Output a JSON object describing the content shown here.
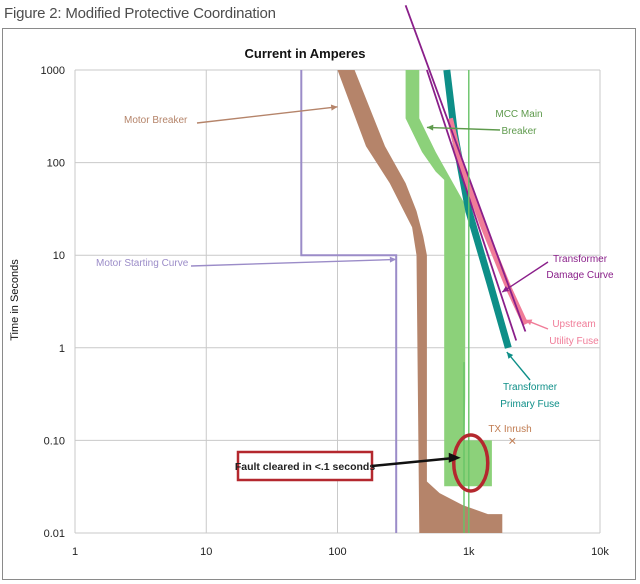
{
  "figure_title": "Figure 2: Modified Protective Coordination",
  "chart_data": {
    "type": "line",
    "title": "Current in Amperes",
    "xlabel": "",
    "ylabel": "Time in Seconds",
    "xscale": "log",
    "yscale": "log",
    "xlim": [
      1,
      10000
    ],
    "ylim": [
      0.01,
      1000
    ],
    "grid": true,
    "x_tick_labels": [
      "1",
      "10",
      "100",
      "1k",
      "10k"
    ],
    "x_tick_values": [
      1,
      10,
      100,
      1000,
      10000
    ],
    "y_tick_labels": [
      "1000",
      "100",
      "10",
      "1",
      "0.10",
      "0.01"
    ],
    "y_tick_values": [
      1000,
      100,
      10,
      1,
      0.1,
      0.01
    ],
    "series": [
      {
        "name": "Motor Breaker",
        "kind": "band",
        "color": "#b5846a",
        "upper": [
          [
            135,
            1000
          ],
          [
            230,
            150
          ],
          [
            330,
            60
          ],
          [
            400,
            30
          ],
          [
            450,
            16
          ],
          [
            480,
            10
          ],
          [
            480,
            0.036
          ],
          [
            600,
            0.027
          ],
          [
            900,
            0.02
          ],
          [
            1400,
            0.016
          ],
          [
            1800,
            0.016
          ],
          [
            1800,
            0.01
          ]
        ],
        "lower": [
          [
            100,
            1000
          ],
          [
            165,
            150
          ],
          [
            250,
            60
          ],
          [
            320,
            30
          ],
          [
            370,
            20
          ],
          [
            400,
            10
          ],
          [
            420,
            0.01
          ]
        ]
      },
      {
        "name": "MCC Main Breaker",
        "kind": "band",
        "color": "#8cd17a",
        "upper": [
          [
            420,
            1000
          ],
          [
            420,
            300
          ],
          [
            560,
            130
          ],
          [
            760,
            60
          ],
          [
            940,
            35
          ],
          [
            940,
            0.3
          ],
          [
            930,
            0.1
          ],
          [
            1250,
            0.1
          ],
          [
            1500,
            0.1
          ],
          [
            1500,
            0.032
          ]
        ],
        "lower": [
          [
            330,
            1000
          ],
          [
            330,
            300
          ],
          [
            440,
            130
          ],
          [
            560,
            80
          ],
          [
            650,
            65
          ],
          [
            650,
            0.032
          ]
        ]
      },
      {
        "name": "Motor Starting Curve",
        "kind": "line",
        "color": "#9b8cc8",
        "points": [
          [
            53,
            1000
          ],
          [
            53,
            10
          ],
          [
            280,
            10
          ],
          [
            280,
            0.01
          ]
        ]
      },
      {
        "name": "Transformer Primary Fuse",
        "kind": "line",
        "color": "#0e8f88",
        "points": [
          [
            680,
            1000
          ],
          [
            780,
            200
          ],
          [
            1000,
            30
          ],
          [
            1450,
            5
          ],
          [
            2000,
            1
          ]
        ]
      },
      {
        "name": "Upstream Utility Fuse",
        "kind": "line",
        "color": "#f07c98",
        "points": [
          [
            720,
            300
          ],
          [
            860,
            100
          ],
          [
            1300,
            20
          ],
          [
            2000,
            4.5
          ],
          [
            2700,
            1.8
          ]
        ]
      },
      {
        "name": "Transformer Damage Curve",
        "kind": "line",
        "color": "#8a1f8a",
        "points": [
          [
            480,
            1000
          ],
          [
            2300,
            1.2
          ]
        ]
      },
      {
        "name": "Transformer Damage Curve",
        "kind": "line",
        "color": "#8a1f8a",
        "points": [
          [
            330,
            5000
          ],
          [
            2700,
            1.5
          ]
        ]
      },
      {
        "name": "",
        "kind": "line",
        "color": "#67c467",
        "points": [
          [
            920,
            0.7
          ],
          [
            920,
            0.01
          ]
        ]
      },
      {
        "name": "",
        "kind": "line",
        "color": "#67c467",
        "points": [
          [
            1000,
            1000
          ],
          [
            1000,
            0.01
          ]
        ]
      }
    ],
    "annotations": [
      {
        "text": "Motor Breaker",
        "color": "#b5846a",
        "arrow_to": [
          100,
          400
        ]
      },
      {
        "text": "MCC Main",
        "color": "#5e9a4c",
        "arrow_to": [
          480,
          240
        ]
      },
      {
        "text": "Breaker",
        "color": "#5e9a4c"
      },
      {
        "text": "Motor Starting Curve",
        "color": "#9b8cc8",
        "arrow_to": [
          280,
          9
        ]
      },
      {
        "text": "Transformer",
        "color": "#8a1f8a",
        "arrow_to": [
          1800,
          4
        ]
      },
      {
        "text": "Damage Curve",
        "color": "#8a1f8a"
      },
      {
        "text": "Upstream",
        "color": "#f07c98",
        "arrow_to": [
          2700,
          2
        ]
      },
      {
        "text": "Utility Fuse",
        "color": "#f07c98"
      },
      {
        "text": "Transformer",
        "color": "#0e8f88",
        "arrow_to": [
          1950,
          0.9
        ]
      },
      {
        "text": "Primary Fuse",
        "color": "#0e8f88"
      },
      {
        "text": "TX Inrush",
        "color": "#c07b50"
      },
      {
        "text": "Fault cleared in <.1 seconds",
        "color": "#b4282e",
        "arrow_to": [
          900,
          0.065
        ]
      }
    ],
    "tx_inrush_marker": {
      "x": 2150,
      "y": 0.1,
      "symbol": "×"
    },
    "fault_region_ellipse": {
      "x_center": 1000,
      "y_center": 0.06
    }
  }
}
